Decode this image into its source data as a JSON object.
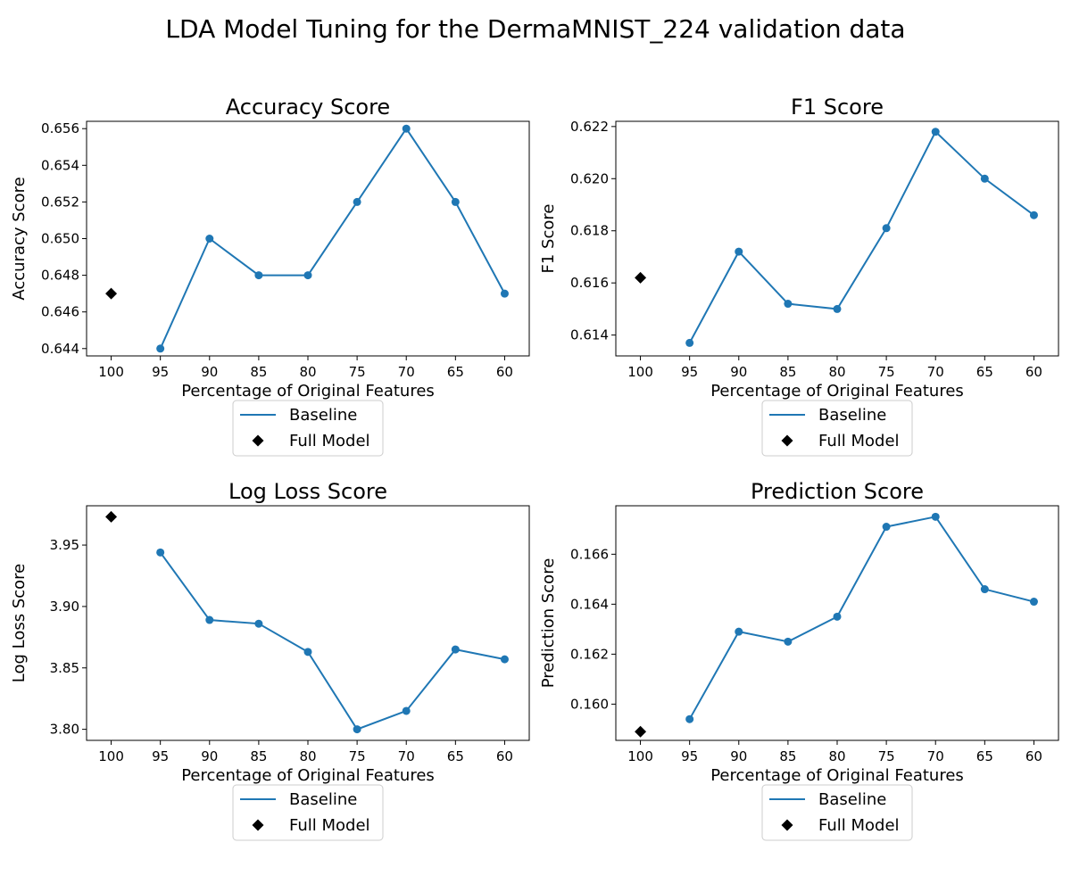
{
  "figure": {
    "suptitle": "LDA Model Tuning for the DermaMNIST_224 validation data"
  },
  "colors": {
    "baseline": "#1f77b4",
    "full_model": "#000000",
    "axes": "#000000",
    "legend_border": "#cccccc"
  },
  "chart_data": [
    {
      "type": "line",
      "title": "Accuracy Score",
      "xlabel": "Percentage of Original Features",
      "ylabel": "Accuracy Score",
      "x_categories": [
        "100",
        "95",
        "90",
        "85",
        "80",
        "75",
        "70",
        "65",
        "60"
      ],
      "ylim": [
        0.6436,
        0.6564
      ],
      "yticks": [
        0.644,
        0.646,
        0.648,
        0.65,
        0.652,
        0.654,
        0.656
      ],
      "ytick_labels": [
        "0.644",
        "0.646",
        "0.648",
        "0.650",
        "0.652",
        "0.654",
        "0.656"
      ],
      "series": [
        {
          "name": "Baseline",
          "marker": "circle",
          "x": [
            "95",
            "90",
            "85",
            "80",
            "75",
            "70",
            "65",
            "60"
          ],
          "values": [
            0.644,
            0.65,
            0.648,
            0.648,
            0.652,
            0.656,
            0.652,
            0.647
          ]
        },
        {
          "name": "Full Model",
          "marker": "diamond",
          "x": [
            "100"
          ],
          "values": [
            0.647
          ]
        }
      ],
      "legend": {
        "placement": "below",
        "entries": [
          "Baseline",
          "Full Model"
        ]
      },
      "grid": false
    },
    {
      "type": "line",
      "title": "F1 Score",
      "xlabel": "Percentage of Original Features",
      "ylabel": "F1 Score",
      "x_categories": [
        "100",
        "95",
        "90",
        "85",
        "80",
        "75",
        "70",
        "65",
        "60"
      ],
      "ylim": [
        0.6132,
        0.6222
      ],
      "yticks": [
        0.614,
        0.616,
        0.618,
        0.62,
        0.622
      ],
      "ytick_labels": [
        "0.614",
        "0.616",
        "0.618",
        "0.620",
        "0.622"
      ],
      "series": [
        {
          "name": "Baseline",
          "marker": "circle",
          "x": [
            "95",
            "90",
            "85",
            "80",
            "75",
            "70",
            "65",
            "60"
          ],
          "values": [
            0.6137,
            0.6172,
            0.6152,
            0.615,
            0.6181,
            0.6218,
            0.62,
            0.6186
          ]
        },
        {
          "name": "Full Model",
          "marker": "diamond",
          "x": [
            "100"
          ],
          "values": [
            0.6162
          ]
        }
      ],
      "legend": {
        "placement": "below",
        "entries": [
          "Baseline",
          "Full Model"
        ]
      },
      "grid": false
    },
    {
      "type": "line",
      "title": "Log Loss Score",
      "xlabel": "Percentage of Original Features",
      "ylabel": "Log Loss Score",
      "x_categories": [
        "100",
        "95",
        "90",
        "85",
        "80",
        "75",
        "70",
        "65",
        "60"
      ],
      "ylim": [
        3.791,
        3.982
      ],
      "yticks": [
        3.8,
        3.85,
        3.9,
        3.95
      ],
      "ytick_labels": [
        "3.80",
        "3.85",
        "3.90",
        "3.95"
      ],
      "series": [
        {
          "name": "Baseline",
          "marker": "circle",
          "x": [
            "95",
            "90",
            "85",
            "80",
            "75",
            "70",
            "65",
            "60"
          ],
          "values": [
            3.944,
            3.889,
            3.886,
            3.863,
            3.8,
            3.815,
            3.865,
            3.857
          ]
        },
        {
          "name": "Full Model",
          "marker": "diamond",
          "x": [
            "100"
          ],
          "values": [
            3.973
          ]
        }
      ],
      "legend": {
        "placement": "below",
        "entries": [
          "Baseline",
          "Full Model"
        ]
      },
      "grid": false
    },
    {
      "type": "line",
      "title": "Prediction Score",
      "xlabel": "Percentage of Original Features",
      "ylabel": "Prediction Score",
      "x_categories": [
        "100",
        "95",
        "90",
        "85",
        "80",
        "75",
        "70",
        "65",
        "60"
      ],
      "ylim": [
        0.15855,
        0.16794
      ],
      "yticks": [
        0.16,
        0.162,
        0.164,
        0.166
      ],
      "ytick_labels": [
        "0.160",
        "0.162",
        "0.164",
        "0.166"
      ],
      "series": [
        {
          "name": "Baseline",
          "marker": "circle",
          "x": [
            "95",
            "90",
            "85",
            "80",
            "75",
            "70",
            "65",
            "60"
          ],
          "values": [
            0.1594,
            0.1629,
            0.1625,
            0.1635,
            0.1671,
            0.1675,
            0.1646,
            0.1641
          ]
        },
        {
          "name": "Full Model",
          "marker": "diamond",
          "x": [
            "100"
          ],
          "values": [
            0.1589
          ]
        }
      ],
      "legend": {
        "placement": "below",
        "entries": [
          "Baseline",
          "Full Model"
        ]
      },
      "grid": false
    }
  ]
}
